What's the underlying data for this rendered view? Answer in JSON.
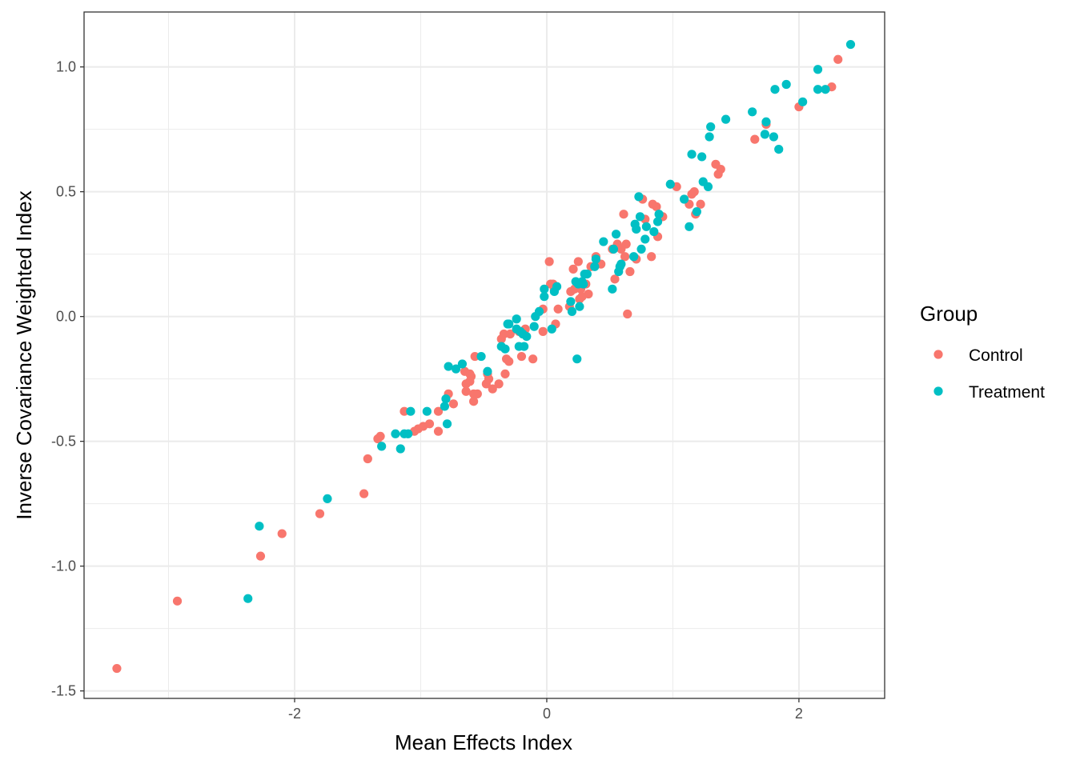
{
  "chart_data": {
    "type": "scatter",
    "xlabel": "Mean Effects Index",
    "ylabel": "Inverse Covariance Weighted Index",
    "xlim": [
      -3.67,
      2.68
    ],
    "ylim": [
      -1.53,
      1.22
    ],
    "x_ticks": [
      -2,
      0,
      2
    ],
    "x_tick_labels": [
      "-2",
      "0",
      "2"
    ],
    "y_ticks": [
      -1.5,
      -1.0,
      -0.5,
      0.0,
      0.5,
      1.0
    ],
    "y_tick_labels": [
      "-1.5",
      "-1.0",
      "-0.5",
      "0.0",
      "0.5",
      "1.0"
    ],
    "x_minor_ticks": [
      -3,
      -1,
      1
    ],
    "y_minor_ticks": [
      -1.25,
      -0.75,
      -0.25,
      0.25,
      0.75
    ],
    "grid": true,
    "legend": {
      "title": "Group",
      "position": "right"
    },
    "series": [
      {
        "name": "Control",
        "color": "#F8766D",
        "points": [
          [
            -3.41,
            -1.41
          ],
          [
            -2.93,
            -1.14
          ],
          [
            -2.27,
            -0.96
          ],
          [
            -2.1,
            -0.87
          ],
          [
            -1.8,
            -0.79
          ],
          [
            -1.45,
            -0.71
          ],
          [
            -1.42,
            -0.57
          ],
          [
            -1.34,
            -0.49
          ],
          [
            -1.32,
            -0.48
          ],
          [
            -1.13,
            -0.38
          ],
          [
            -1.05,
            -0.46
          ],
          [
            -1.02,
            -0.45
          ],
          [
            -0.98,
            -0.44
          ],
          [
            -0.93,
            -0.43
          ],
          [
            -0.86,
            -0.46
          ],
          [
            -0.86,
            -0.38
          ],
          [
            -0.78,
            -0.31
          ],
          [
            -0.74,
            -0.35
          ],
          [
            -0.65,
            -0.22
          ],
          [
            -0.64,
            -0.27
          ],
          [
            -0.64,
            -0.3
          ],
          [
            -0.61,
            -0.23
          ],
          [
            -0.61,
            -0.26
          ],
          [
            -0.6,
            -0.24
          ],
          [
            -0.58,
            -0.31
          ],
          [
            -0.58,
            -0.34
          ],
          [
            -0.57,
            -0.16
          ],
          [
            -0.55,
            -0.31
          ],
          [
            -0.48,
            -0.27
          ],
          [
            -0.47,
            -0.23
          ],
          [
            -0.46,
            -0.25
          ],
          [
            -0.43,
            -0.29
          ],
          [
            -0.38,
            -0.27
          ],
          [
            -0.36,
            -0.09
          ],
          [
            -0.34,
            -0.07
          ],
          [
            -0.33,
            -0.23
          ],
          [
            -0.32,
            -0.17
          ],
          [
            -0.3,
            -0.18
          ],
          [
            -0.29,
            -0.07
          ],
          [
            -0.22,
            -0.06
          ],
          [
            -0.2,
            -0.16
          ],
          [
            -0.17,
            -0.05
          ],
          [
            -0.11,
            -0.17
          ],
          [
            -0.03,
            0.03
          ],
          [
            -0.03,
            -0.06
          ],
          [
            0.02,
            0.22
          ],
          [
            0.03,
            0.13
          ],
          [
            0.05,
            0.13
          ],
          [
            0.06,
            0.11
          ],
          [
            0.07,
            -0.03
          ],
          [
            0.09,
            0.03
          ],
          [
            0.18,
            0.04
          ],
          [
            0.19,
            0.1
          ],
          [
            0.21,
            0.19
          ],
          [
            0.22,
            0.11
          ],
          [
            0.25,
            0.22
          ],
          [
            0.26,
            0.07
          ],
          [
            0.27,
            0.11
          ],
          [
            0.28,
            0.08
          ],
          [
            0.31,
            0.13
          ],
          [
            0.33,
            0.09
          ],
          [
            0.35,
            0.2
          ],
          [
            0.39,
            0.24
          ],
          [
            0.43,
            0.21
          ],
          [
            0.52,
            0.27
          ],
          [
            0.54,
            0.15
          ],
          [
            0.56,
            0.29
          ],
          [
            0.59,
            0.27
          ],
          [
            0.61,
            0.41
          ],
          [
            0.62,
            0.24
          ],
          [
            0.63,
            0.29
          ],
          [
            0.64,
            0.01
          ],
          [
            0.66,
            0.18
          ],
          [
            0.71,
            0.23
          ],
          [
            0.76,
            0.47
          ],
          [
            0.78,
            0.39
          ],
          [
            0.83,
            0.24
          ],
          [
            0.84,
            0.45
          ],
          [
            0.87,
            0.44
          ],
          [
            0.88,
            0.32
          ],
          [
            0.92,
            0.4
          ],
          [
            1.03,
            0.52
          ],
          [
            1.13,
            0.45
          ],
          [
            1.15,
            0.49
          ],
          [
            1.17,
            0.5
          ],
          [
            1.18,
            0.41
          ],
          [
            1.22,
            0.45
          ],
          [
            1.34,
            0.61
          ],
          [
            1.36,
            0.57
          ],
          [
            1.38,
            0.59
          ],
          [
            1.65,
            0.71
          ],
          [
            1.74,
            0.77
          ],
          [
            2.0,
            0.84
          ],
          [
            2.26,
            0.92
          ],
          [
            2.31,
            1.03
          ]
        ]
      },
      {
        "name": "Treatment",
        "color": "#00BFC4",
        "points": [
          [
            -2.37,
            -1.13
          ],
          [
            -2.28,
            -0.84
          ],
          [
            -1.74,
            -0.73
          ],
          [
            -1.31,
            -0.52
          ],
          [
            -1.2,
            -0.47
          ],
          [
            -1.16,
            -0.53
          ],
          [
            -1.13,
            -0.47
          ],
          [
            -1.1,
            -0.47
          ],
          [
            -1.08,
            -0.38
          ],
          [
            -0.95,
            -0.38
          ],
          [
            -0.81,
            -0.36
          ],
          [
            -0.8,
            -0.33
          ],
          [
            -0.79,
            -0.43
          ],
          [
            -0.78,
            -0.2
          ],
          [
            -0.72,
            -0.21
          ],
          [
            -0.67,
            -0.19
          ],
          [
            -0.52,
            -0.16
          ],
          [
            -0.47,
            -0.22
          ],
          [
            -0.36,
            -0.12
          ],
          [
            -0.33,
            -0.13
          ],
          [
            -0.31,
            -0.03
          ],
          [
            -0.3,
            -0.03
          ],
          [
            -0.24,
            -0.05
          ],
          [
            -0.24,
            -0.01
          ],
          [
            -0.22,
            -0.12
          ],
          [
            -0.21,
            -0.06
          ],
          [
            -0.19,
            -0.07
          ],
          [
            -0.18,
            -0.12
          ],
          [
            -0.16,
            -0.08
          ],
          [
            -0.1,
            -0.04
          ],
          [
            -0.09,
            0.0
          ],
          [
            -0.06,
            0.02
          ],
          [
            -0.02,
            0.08
          ],
          [
            -0.02,
            0.11
          ],
          [
            0.04,
            -0.05
          ],
          [
            0.06,
            0.1
          ],
          [
            0.08,
            0.12
          ],
          [
            0.19,
            0.06
          ],
          [
            0.2,
            0.02
          ],
          [
            0.23,
            0.14
          ],
          [
            0.24,
            -0.17
          ],
          [
            0.25,
            0.13
          ],
          [
            0.26,
            0.04
          ],
          [
            0.28,
            0.14
          ],
          [
            0.29,
            0.13
          ],
          [
            0.3,
            0.17
          ],
          [
            0.32,
            0.17
          ],
          [
            0.38,
            0.2
          ],
          [
            0.39,
            0.23
          ],
          [
            0.45,
            0.3
          ],
          [
            0.52,
            0.11
          ],
          [
            0.53,
            0.27
          ],
          [
            0.55,
            0.33
          ],
          [
            0.57,
            0.18
          ],
          [
            0.58,
            0.2
          ],
          [
            0.59,
            0.21
          ],
          [
            0.69,
            0.24
          ],
          [
            0.7,
            0.37
          ],
          [
            0.71,
            0.35
          ],
          [
            0.73,
            0.48
          ],
          [
            0.74,
            0.4
          ],
          [
            0.75,
            0.27
          ],
          [
            0.78,
            0.31
          ],
          [
            0.79,
            0.36
          ],
          [
            0.85,
            0.34
          ],
          [
            0.88,
            0.38
          ],
          [
            0.89,
            0.41
          ],
          [
            0.98,
            0.53
          ],
          [
            1.09,
            0.47
          ],
          [
            1.13,
            0.36
          ],
          [
            1.15,
            0.65
          ],
          [
            1.19,
            0.42
          ],
          [
            1.23,
            0.64
          ],
          [
            1.24,
            0.54
          ],
          [
            1.28,
            0.52
          ],
          [
            1.29,
            0.72
          ],
          [
            1.3,
            0.76
          ],
          [
            1.42,
            0.79
          ],
          [
            1.63,
            0.82
          ],
          [
            1.73,
            0.73
          ],
          [
            1.74,
            0.78
          ],
          [
            1.8,
            0.72
          ],
          [
            1.81,
            0.91
          ],
          [
            1.84,
            0.67
          ],
          [
            1.9,
            0.93
          ],
          [
            2.03,
            0.86
          ],
          [
            2.15,
            0.91
          ],
          [
            2.15,
            0.99
          ],
          [
            2.21,
            0.91
          ],
          [
            2.41,
            1.09
          ]
        ]
      }
    ]
  }
}
